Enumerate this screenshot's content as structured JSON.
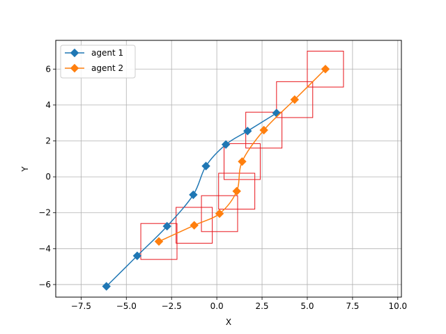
{
  "chart_data": {
    "type": "line",
    "xlabel": "X",
    "ylabel": "Y",
    "xlim": [
      -8.9,
      10.2
    ],
    "ylim": [
      -6.7,
      7.6
    ],
    "x_ticks": [
      -7.5,
      -5.0,
      -2.5,
      0.0,
      2.5,
      5.0,
      7.5,
      10.0
    ],
    "x_tick_labels": [
      "−7.5",
      "−5.0",
      "−2.5",
      "0.0",
      "2.5",
      "5.0",
      "7.5",
      "10.0"
    ],
    "y_ticks": [
      -6,
      -4,
      -2,
      0,
      2,
      4,
      6
    ],
    "y_tick_labels": [
      "−6",
      "−4",
      "−2",
      "0",
      "2",
      "4",
      "6"
    ],
    "grid": true,
    "legend_position": "top-left",
    "series": [
      {
        "name": "agent 1",
        "color": "#1f77b4",
        "marker": "diamond",
        "points": [
          [
            -6.1,
            -6.1
          ],
          [
            -4.4,
            -4.4
          ],
          [
            -2.75,
            -2.75
          ],
          [
            -1.3,
            -1.0
          ],
          [
            -0.6,
            0.6
          ],
          [
            0.5,
            1.8
          ],
          [
            1.7,
            2.55
          ],
          [
            3.3,
            3.55
          ]
        ]
      },
      {
        "name": "agent 2",
        "color": "#ff7f0e",
        "marker": "diamond",
        "points": [
          [
            -3.2,
            -3.6
          ],
          [
            -1.25,
            -2.7
          ],
          [
            0.15,
            -2.05
          ],
          [
            1.1,
            -0.8
          ],
          [
            1.4,
            0.85
          ],
          [
            2.6,
            2.6
          ],
          [
            4.3,
            4.3
          ],
          [
            6.0,
            6.0
          ]
        ]
      }
    ],
    "boxes": {
      "color": "#e8151b",
      "half_size": 1.0,
      "centers": [
        [
          -3.2,
          -3.6
        ],
        [
          -1.25,
          -2.7
        ],
        [
          0.15,
          -2.05
        ],
        [
          1.1,
          -0.8
        ],
        [
          1.4,
          0.85
        ],
        [
          2.6,
          2.6
        ],
        [
          4.3,
          4.3
        ],
        [
          6.0,
          6.0
        ]
      ]
    }
  }
}
